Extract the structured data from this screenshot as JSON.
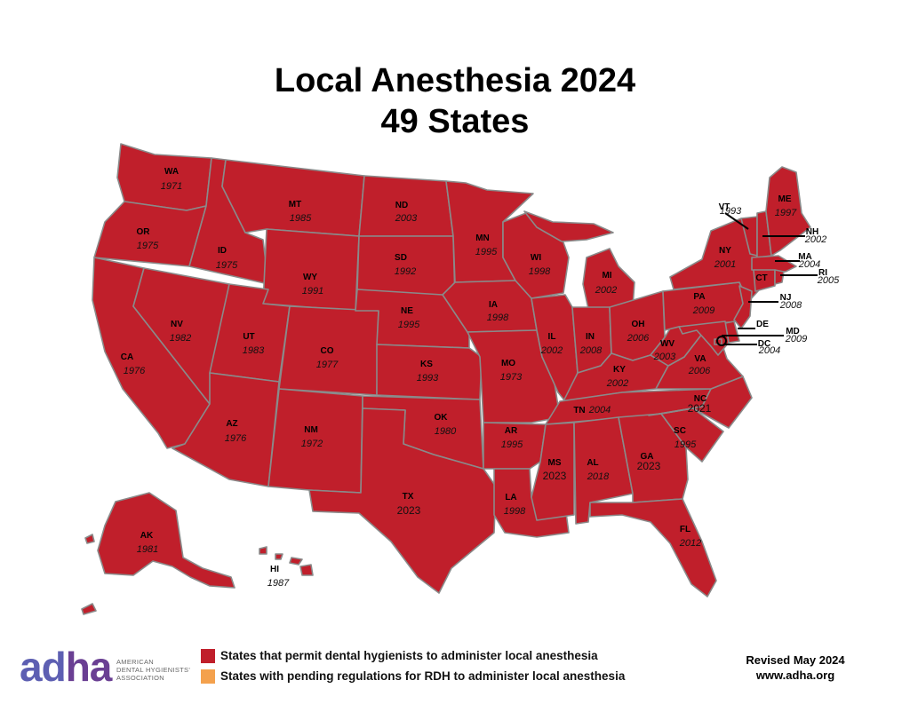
{
  "title": "Local Anesthesia 2024",
  "subtitle": "49 States",
  "colors": {
    "permitted": "#c01f2b",
    "pending": "#f4a14d",
    "border": "#8a8a8a",
    "logo_blue": "#5d5fb2",
    "logo_purple": "#6a3f93"
  },
  "states": [
    {
      "abbr": "WA",
      "year": "1971",
      "status": "permitted"
    },
    {
      "abbr": "OR",
      "year": "1975",
      "status": "permitted"
    },
    {
      "abbr": "CA",
      "year": "1976",
      "status": "permitted"
    },
    {
      "abbr": "ID",
      "year": "1975",
      "status": "permitted"
    },
    {
      "abbr": "NV",
      "year": "1982",
      "status": "permitted"
    },
    {
      "abbr": "MT",
      "year": "1985",
      "status": "permitted"
    },
    {
      "abbr": "WY",
      "year": "1991",
      "status": "permitted"
    },
    {
      "abbr": "UT",
      "year": "1983",
      "status": "permitted"
    },
    {
      "abbr": "AZ",
      "year": "1976",
      "status": "permitted"
    },
    {
      "abbr": "CO",
      "year": "1977",
      "status": "permitted"
    },
    {
      "abbr": "NM",
      "year": "1972",
      "status": "permitted"
    },
    {
      "abbr": "ND",
      "year": "2003",
      "status": "permitted"
    },
    {
      "abbr": "SD",
      "year": "1992",
      "status": "permitted"
    },
    {
      "abbr": "NE",
      "year": "1995",
      "status": "permitted"
    },
    {
      "abbr": "KS",
      "year": "1993",
      "status": "permitted"
    },
    {
      "abbr": "OK",
      "year": "1980",
      "status": "permitted"
    },
    {
      "abbr": "TX",
      "year": "2023",
      "status": "permitted"
    },
    {
      "abbr": "MN",
      "year": "1995",
      "status": "permitted"
    },
    {
      "abbr": "IA",
      "year": "1998",
      "status": "permitted"
    },
    {
      "abbr": "MO",
      "year": "1973",
      "status": "permitted"
    },
    {
      "abbr": "AR",
      "year": "1995",
      "status": "permitted"
    },
    {
      "abbr": "LA",
      "year": "1998",
      "status": "permitted"
    },
    {
      "abbr": "WI",
      "year": "1998",
      "status": "permitted"
    },
    {
      "abbr": "IL",
      "year": "2002",
      "status": "permitted"
    },
    {
      "abbr": "MI",
      "year": "2002",
      "status": "permitted"
    },
    {
      "abbr": "IN",
      "year": "2008",
      "status": "permitted"
    },
    {
      "abbr": "OH",
      "year": "2006",
      "status": "permitted"
    },
    {
      "abbr": "KY",
      "year": "2002",
      "status": "permitted"
    },
    {
      "abbr": "TN",
      "year": "2004",
      "status": "permitted"
    },
    {
      "abbr": "MS",
      "year": "2023",
      "status": "permitted"
    },
    {
      "abbr": "AL",
      "year": "2018",
      "status": "permitted"
    },
    {
      "abbr": "GA",
      "year": "2023",
      "status": "permitted"
    },
    {
      "abbr": "FL",
      "year": "2012",
      "status": "permitted"
    },
    {
      "abbr": "SC",
      "year": "1995",
      "status": "permitted"
    },
    {
      "abbr": "NC",
      "year": "2021",
      "status": "permitted"
    },
    {
      "abbr": "VA",
      "year": "2006",
      "status": "permitted"
    },
    {
      "abbr": "WV",
      "year": "2003",
      "status": "permitted"
    },
    {
      "abbr": "PA",
      "year": "2009",
      "status": "permitted"
    },
    {
      "abbr": "NY",
      "year": "2001",
      "status": "permitted"
    },
    {
      "abbr": "VT",
      "year": "1993",
      "status": "permitted"
    },
    {
      "abbr": "NH",
      "year": "2002",
      "status": "permitted"
    },
    {
      "abbr": "ME",
      "year": "1997",
      "status": "permitted"
    },
    {
      "abbr": "MA",
      "year": "2004",
      "status": "permitted"
    },
    {
      "abbr": "RI",
      "year": "2005",
      "status": "permitted"
    },
    {
      "abbr": "CT",
      "year": "",
      "status": "permitted"
    },
    {
      "abbr": "NJ",
      "year": "2008",
      "status": "permitted"
    },
    {
      "abbr": "DE",
      "year": "",
      "status": "permitted"
    },
    {
      "abbr": "MD",
      "year": "2009",
      "status": "permitted"
    },
    {
      "abbr": "DC",
      "year": "2004",
      "status": "permitted"
    },
    {
      "abbr": "AK",
      "year": "1981",
      "status": "permitted"
    },
    {
      "abbr": "HI",
      "year": "1987",
      "status": "not-permitted"
    }
  ],
  "legend": [
    {
      "label": "States that permit dental hygienists to administer local anesthesia",
      "color": "#c01f2b"
    },
    {
      "label": "States with pending regulations for RDH to administer local anesthesia",
      "color": "#f4a14d"
    }
  ],
  "logo": {
    "wordmark_a": "ad",
    "wordmark_b": "ha",
    "line1": "AMERICAN",
    "line2": "DENTAL HYGIENISTS'",
    "line3": "ASSOCIATION"
  },
  "footer": {
    "revised": "Revised May 2024",
    "website": "www.adha.org"
  }
}
